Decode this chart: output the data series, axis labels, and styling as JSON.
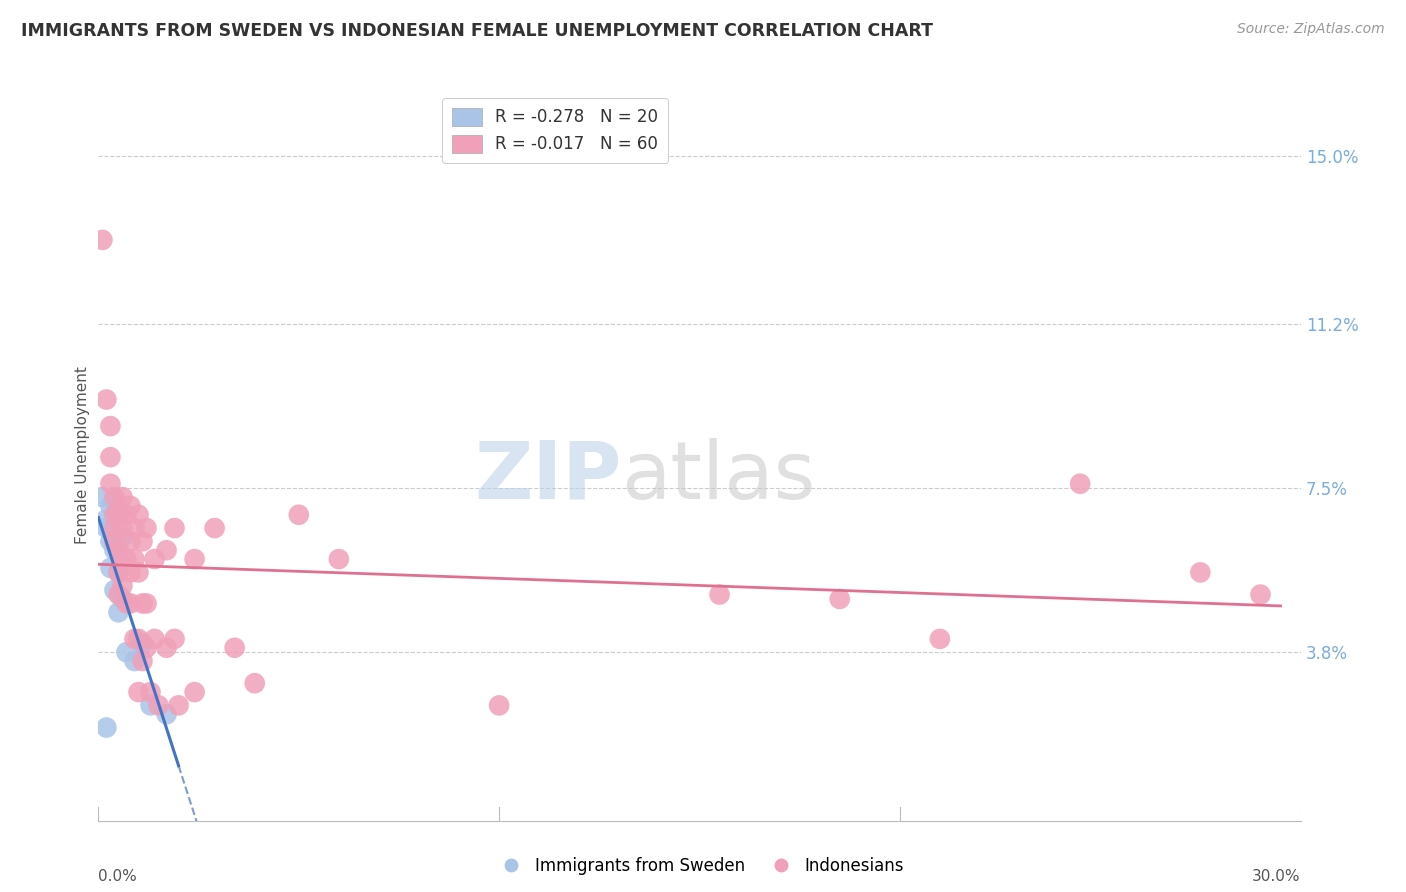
{
  "title": "IMMIGRANTS FROM SWEDEN VS INDONESIAN FEMALE UNEMPLOYMENT CORRELATION CHART",
  "source": "Source: ZipAtlas.com",
  "ylabel": "Female Unemployment",
  "ytick_values": [
    0.15,
    0.112,
    0.075,
    0.038
  ],
  "ytick_labels": [
    "15.0%",
    "11.2%",
    "7.5%",
    "3.8%"
  ],
  "xmin": 0.0,
  "xmax": 0.3,
  "ymin": 0.0,
  "ymax": 0.165,
  "legend_blue_R": "R = -0.278",
  "legend_blue_N": "N = 20",
  "legend_pink_R": "R = -0.017",
  "legend_pink_N": "N = 60",
  "legend_label_blue": "Immigrants from Sweden",
  "legend_label_pink": "Indonesians",
  "watermark_zip": "ZIP",
  "watermark_atlas": "atlas",
  "blue_color": "#aac4e8",
  "pink_color": "#f0a0b8",
  "blue_line_color": "#4472c4",
  "pink_line_color": "#e07090",
  "grid_color": "#cccccc",
  "background_color": "#ffffff",
  "title_color": "#333333",
  "axis_label_color": "#555555",
  "right_label_color": "#7aacdc",
  "source_color": "#999999",
  "blue_scatter": [
    [
      0.001,
      0.073
    ],
    [
      0.002,
      0.068
    ],
    [
      0.002,
      0.066
    ],
    [
      0.003,
      0.071
    ],
    [
      0.003,
      0.063
    ],
    [
      0.003,
      0.057
    ],
    [
      0.004,
      0.072
    ],
    [
      0.004,
      0.061
    ],
    [
      0.004,
      0.052
    ],
    [
      0.005,
      0.069
    ],
    [
      0.005,
      0.056
    ],
    [
      0.005,
      0.047
    ],
    [
      0.006,
      0.064
    ],
    [
      0.006,
      0.05
    ],
    [
      0.007,
      0.038
    ],
    [
      0.009,
      0.036
    ],
    [
      0.011,
      0.04
    ],
    [
      0.013,
      0.026
    ],
    [
      0.017,
      0.024
    ],
    [
      0.002,
      0.021
    ]
  ],
  "pink_scatter": [
    [
      0.001,
      0.131
    ],
    [
      0.002,
      0.095
    ],
    [
      0.003,
      0.089
    ],
    [
      0.003,
      0.082
    ],
    [
      0.003,
      0.076
    ],
    [
      0.004,
      0.069
    ],
    [
      0.004,
      0.073
    ],
    [
      0.004,
      0.066
    ],
    [
      0.004,
      0.063
    ],
    [
      0.005,
      0.069
    ],
    [
      0.005,
      0.061
    ],
    [
      0.005,
      0.056
    ],
    [
      0.005,
      0.051
    ],
    [
      0.006,
      0.073
    ],
    [
      0.006,
      0.066
    ],
    [
      0.006,
      0.059
    ],
    [
      0.006,
      0.053
    ],
    [
      0.007,
      0.069
    ],
    [
      0.007,
      0.059
    ],
    [
      0.007,
      0.049
    ],
    [
      0.008,
      0.071
    ],
    [
      0.008,
      0.063
    ],
    [
      0.008,
      0.056
    ],
    [
      0.008,
      0.049
    ],
    [
      0.009,
      0.066
    ],
    [
      0.009,
      0.059
    ],
    [
      0.009,
      0.041
    ],
    [
      0.01,
      0.069
    ],
    [
      0.01,
      0.056
    ],
    [
      0.01,
      0.041
    ],
    [
      0.01,
      0.029
    ],
    [
      0.011,
      0.063
    ],
    [
      0.011,
      0.049
    ],
    [
      0.011,
      0.036
    ],
    [
      0.012,
      0.066
    ],
    [
      0.012,
      0.049
    ],
    [
      0.012,
      0.039
    ],
    [
      0.013,
      0.029
    ],
    [
      0.014,
      0.059
    ],
    [
      0.014,
      0.041
    ],
    [
      0.015,
      0.026
    ],
    [
      0.017,
      0.061
    ],
    [
      0.017,
      0.039
    ],
    [
      0.019,
      0.066
    ],
    [
      0.019,
      0.041
    ],
    [
      0.02,
      0.026
    ],
    [
      0.024,
      0.059
    ],
    [
      0.024,
      0.029
    ],
    [
      0.029,
      0.066
    ],
    [
      0.034,
      0.039
    ],
    [
      0.039,
      0.031
    ],
    [
      0.05,
      0.069
    ],
    [
      0.06,
      0.059
    ],
    [
      0.1,
      0.026
    ],
    [
      0.155,
      0.051
    ],
    [
      0.185,
      0.05
    ],
    [
      0.21,
      0.041
    ],
    [
      0.245,
      0.076
    ],
    [
      0.275,
      0.056
    ],
    [
      0.29,
      0.051
    ]
  ],
  "blue_line_x0": 0.0,
  "blue_line_x_solid_end": 0.02,
  "blue_line_x_dash_end": 0.3,
  "pink_line_x0": 0.0,
  "pink_line_x1": 0.295
}
